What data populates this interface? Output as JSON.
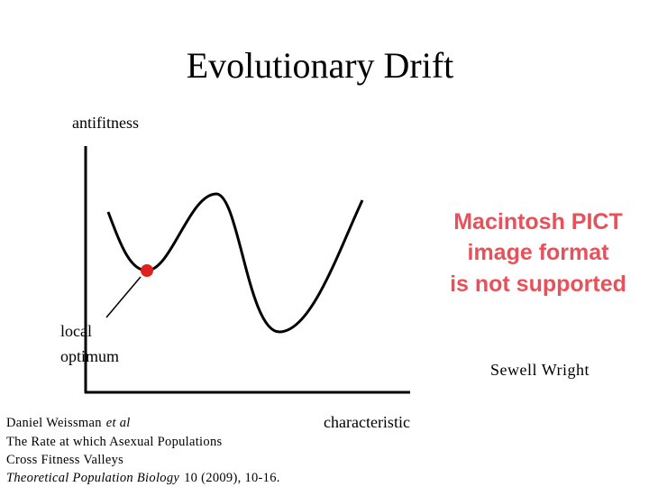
{
  "header": {
    "title": "Evolutionary Drift"
  },
  "axes": {
    "y_label": "antifitness",
    "x_label": "characteristic"
  },
  "annotation": {
    "lines": [
      "local",
      "optimum"
    ]
  },
  "image_placeholder": {
    "lines": [
      "Macintosh PICT",
      "image format",
      "is not supported"
    ]
  },
  "image_caption": "Sewell Wright",
  "citation": {
    "author": "Daniel Weissman",
    "et_al": "et al",
    "title_lines": [
      "The Rate at which Asexual Populations",
      "Cross Fitness Valleys"
    ],
    "journal": "Theoretical Population Biology",
    "details": "10 (2009), 10-16."
  }
}
